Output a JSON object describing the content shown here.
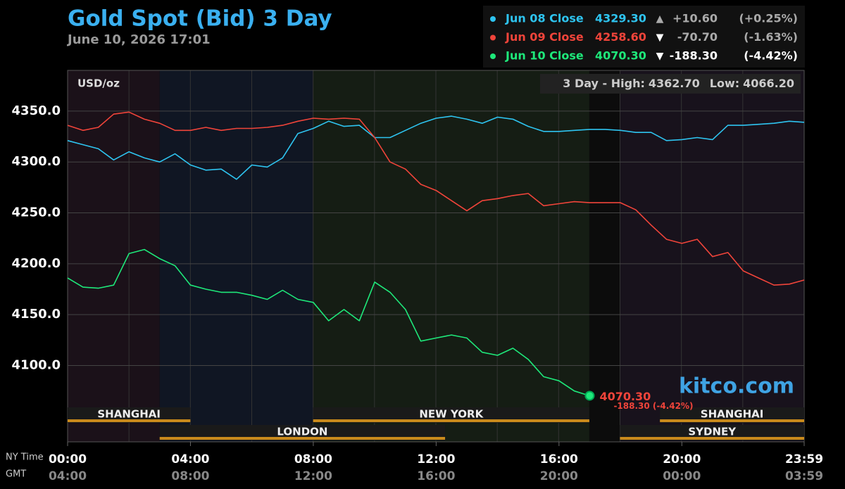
{
  "chart_data": {
    "type": "line",
    "title": "Gold Spot (Bid) 3 Day",
    "subtitle": "June 10, 2026 17:01",
    "unit_label": "USD/oz",
    "range_text": {
      "prefix": "3 Day - High:",
      "high": {
        "value": 4362.7,
        "label": "4362.70"
      },
      "low_prefix": "Low:",
      "low": {
        "value": 4066.2,
        "label": "4066.20"
      }
    },
    "brand": "kitco.com",
    "x_label": "NY Time",
    "x2_label": "GMT",
    "x": [
      0,
      0.5,
      1,
      1.5,
      2,
      2.5,
      3,
      3.5,
      4,
      4.5,
      5,
      5.5,
      6,
      6.5,
      7,
      7.5,
      8,
      8.5,
      9,
      9.5,
      10,
      10.5,
      11,
      11.5,
      12,
      12.5,
      13,
      13.5,
      14,
      14.5,
      15,
      15.5,
      16,
      16.5,
      17,
      17.5,
      18,
      18.5,
      19,
      19.5,
      20,
      20.5,
      21,
      21.5,
      22,
      22.5,
      23,
      23.5,
      23.983
    ],
    "xlim": [
      0,
      23.983
    ],
    "xticks": [
      {
        "value": 0,
        "label": "00:00"
      },
      {
        "value": 4,
        "label": "04:00"
      },
      {
        "value": 8,
        "label": "08:00"
      },
      {
        "value": 12,
        "label": "12:00"
      },
      {
        "value": 16,
        "label": "16:00"
      },
      {
        "value": 20,
        "label": "20:00"
      },
      {
        "value": 23.983,
        "label": "23:59"
      }
    ],
    "x2ticks": [
      {
        "value": 0,
        "label": "04:00"
      },
      {
        "value": 4,
        "label": "08:00"
      },
      {
        "value": 8,
        "label": "12:00"
      },
      {
        "value": 12,
        "label": "16:00"
      },
      {
        "value": 16,
        "label": "20:00"
      },
      {
        "value": 20,
        "label": "00:00"
      },
      {
        "value": 23.983,
        "label": "03:59"
      }
    ],
    "ylim": [
      4025,
      4390
    ],
    "yticks": [
      {
        "value": 4100,
        "label": "4100.0"
      },
      {
        "value": 4150,
        "label": "4150.0"
      },
      {
        "value": 4200,
        "label": "4200.0"
      },
      {
        "value": 4250,
        "label": "4250.0"
      },
      {
        "value": 4300,
        "label": "4300.0"
      },
      {
        "value": 4350,
        "label": "4350.0"
      }
    ],
    "grid": true,
    "series": [
      {
        "name": "Jun 08 Close",
        "color": "#2ec4f0",
        "close": {
          "value": 4329.3,
          "label": "4329.30"
        },
        "direction": "▲",
        "change": {
          "value": 10.6,
          "label": "+10.60"
        },
        "change_pct": {
          "value": 0.25,
          "label": "(+0.25%)"
        },
        "values": [
          4321,
          4317,
          4313,
          4302,
          4310,
          4304,
          4300,
          4308,
          4297,
          4292,
          4293,
          4283,
          4297,
          4295,
          4304,
          4328,
          4333,
          4340,
          4335,
          4336,
          4324,
          4324,
          4331,
          4338,
          4343,
          4345,
          4342,
          4338,
          4344,
          4342,
          4335,
          4330,
          4330,
          4331,
          4332,
          4332,
          4331,
          4329,
          4329,
          4321,
          4322,
          4324,
          4322,
          4336,
          4336,
          4337,
          4338,
          4340,
          4339
        ]
      },
      {
        "name": "Jun 09 Close",
        "color": "#f0443a",
        "close": {
          "value": 4258.6,
          "label": "4258.60"
        },
        "direction": "▼",
        "change": {
          "value": -70.7,
          "label": "-70.70"
        },
        "change_pct": {
          "value": -1.63,
          "label": "(-1.63%)"
        },
        "values": [
          4336,
          4331,
          4334,
          4347,
          4349,
          4342,
          4338,
          4331,
          4331,
          4334,
          4331,
          4333,
          4333,
          4334,
          4336,
          4340,
          4343,
          4342,
          4343,
          4342,
          4324,
          4300,
          4293,
          4278,
          4272,
          4262,
          4252,
          4262,
          4264,
          4267,
          4269,
          4257,
          4259,
          4261,
          4260,
          4260,
          4260,
          4253,
          4238,
          4224,
          4220,
          4224,
          4207,
          4211,
          4193,
          4186,
          4179,
          4180,
          4184
        ]
      },
      {
        "name": "Jun 10 Close",
        "color": "#1ee87a",
        "close": {
          "value": 4070.3,
          "label": "4070.30"
        },
        "direction": "▼",
        "change": {
          "value": -188.3,
          "label": "-188.30"
        },
        "change_pct": {
          "value": -4.42,
          "label": "(-4.42%)"
        },
        "values": [
          4186,
          4177,
          4176,
          4179,
          4210,
          4214,
          4205,
          4198,
          4179,
          4175,
          4172,
          4172,
          4169,
          4165,
          4174,
          4165,
          4162,
          4144,
          4155,
          4144,
          4182,
          4172,
          4155,
          4124,
          4127,
          4130,
          4127,
          4113,
          4110,
          4117,
          4106,
          4089,
          4085,
          4075,
          4070.3,
          null,
          null,
          null,
          null,
          null,
          null,
          null,
          null,
          null,
          null,
          null,
          null,
          null,
          null
        ]
      }
    ],
    "last_label": {
      "value": 4070.3,
      "label": "4070.30"
    },
    "last_change": "-188.30 (-4.42%)",
    "sessions": [
      "SHANGHAI",
      "NEW YORK",
      "SHANGHAI",
      "LONDON",
      "SYDNEY"
    ]
  }
}
